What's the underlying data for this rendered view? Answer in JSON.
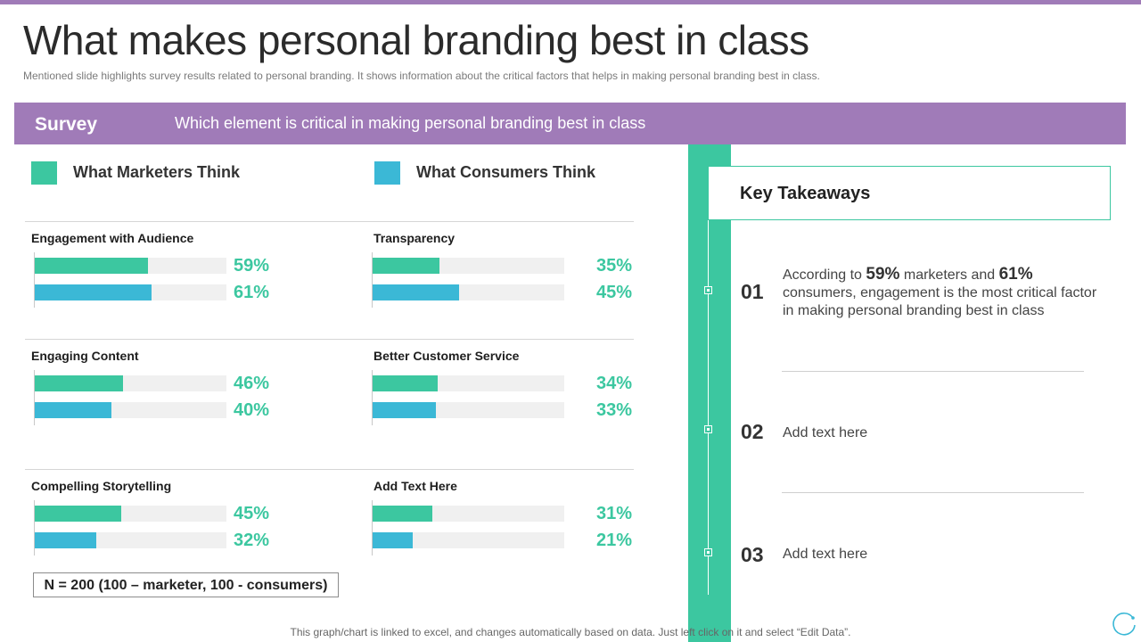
{
  "slide": {
    "title": "What makes personal branding best in class",
    "subtitle": "Mentioned slide highlights survey results related to personal branding. It shows information  about the critical factors that helps in making personal branding  best in class."
  },
  "banner": {
    "label": "Survey",
    "question": "Which element is critical in making personal branding best in class"
  },
  "legend": {
    "marketers": "What Marketers Think",
    "consumers": "What Consumers Think"
  },
  "colors": {
    "accent_purple": "#a07bb8",
    "marketers": "#3cc7a0",
    "consumers": "#3bb8d6",
    "percent_text": "#3cc7a0",
    "track": "#f0f0f0"
  },
  "chart_data": {
    "type": "bar",
    "series": [
      {
        "name": "What Marketers Think",
        "values": [
          59,
          35,
          46,
          34,
          45,
          31
        ]
      },
      {
        "name": "What Consumers Think",
        "values": [
          61,
          45,
          40,
          33,
          32,
          21
        ]
      }
    ],
    "categories": [
      "Engagement with Audience",
      "Transparency",
      "Engaging Content",
      "Better Customer Service",
      "Compelling Storytelling",
      "Add  Text Here"
    ],
    "groups": [
      {
        "title": "Engagement with Audience",
        "marketers": 59,
        "consumers": 61,
        "marketers_label": "59%",
        "consumers_label": "61%"
      },
      {
        "title": "Transparency",
        "marketers": 35,
        "consumers": 45,
        "marketers_label": "35%",
        "consumers_label": "45%"
      },
      {
        "title": "Engaging Content",
        "marketers": 46,
        "consumers": 40,
        "marketers_label": "46%",
        "consumers_label": "40%"
      },
      {
        "title": "Better Customer Service",
        "marketers": 34,
        "consumers": 33,
        "marketers_label": "34%",
        "consumers_label": "33%"
      },
      {
        "title": "Compelling Storytelling",
        "marketers": 45,
        "consumers": 32,
        "marketers_label": "45%",
        "consumers_label": "32%"
      },
      {
        "title": "Add  Text Here",
        "marketers": 31,
        "consumers": 21,
        "marketers_label": "31%",
        "consumers_label": "21%"
      }
    ],
    "scale_max": 100
  },
  "sample_note": "N = 200 (100 – marketer, 100 - consumers)",
  "takeaways": {
    "heading": "Key  Takeaways",
    "items": [
      {
        "num": "01",
        "pre": "According to ",
        "b1": "59%",
        "mid": " marketers and ",
        "b2": "61%",
        "post": " consumers, engagement is the most critical factor in making personal branding best in class"
      },
      {
        "num": "02",
        "text": "Add text here"
      },
      {
        "num": "03",
        "text": "Add text here"
      }
    ]
  },
  "footer": "This graph/chart is linked to excel,  and changes automatically based on data. Just left click on it and select “Edit Data”.",
  "icons": {
    "corner": "refresh-circle-icon"
  }
}
